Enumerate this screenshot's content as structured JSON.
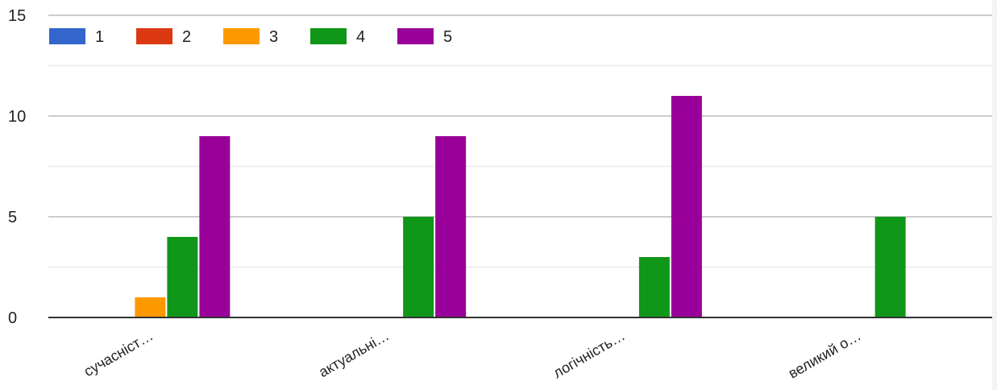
{
  "chart_data": {
    "type": "bar",
    "title": "",
    "xlabel": "",
    "ylabel": "",
    "ylim": [
      0,
      15
    ],
    "yticks": [
      0,
      5,
      10,
      15
    ],
    "grid": true,
    "legend_position": "top-left",
    "categories": [
      "сучасніст…",
      "актуальні…",
      "логічність…",
      "великий о…"
    ],
    "series": [
      {
        "name": "1",
        "color": "#3366cc",
        "values": [
          0,
          0,
          0,
          0
        ]
      },
      {
        "name": "2",
        "color": "#dc3912",
        "values": [
          0,
          0,
          0,
          0
        ]
      },
      {
        "name": "3",
        "color": "#ff9900",
        "values": [
          1,
          0,
          0,
          0
        ]
      },
      {
        "name": "4",
        "color": "#109618",
        "values": [
          4,
          5,
          3,
          5
        ]
      },
      {
        "name": "5",
        "color": "#990099",
        "values": [
          9,
          9,
          11,
          0
        ]
      }
    ]
  }
}
